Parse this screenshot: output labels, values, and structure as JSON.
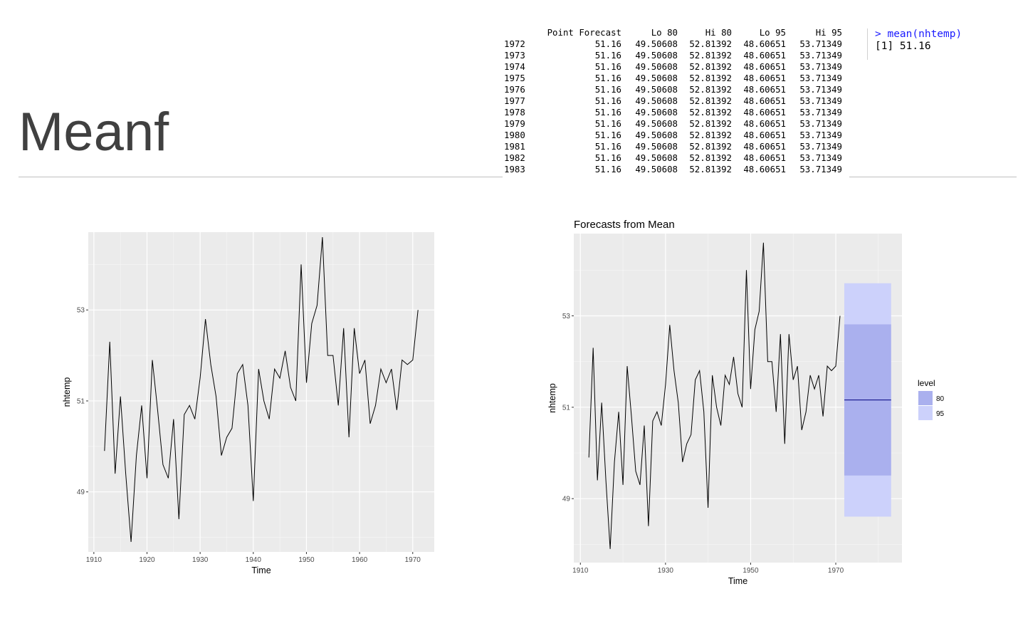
{
  "slide": {
    "title": "Meanf"
  },
  "console_table": {
    "header": [
      "Point Forecast",
      "Lo 80",
      "Hi 80",
      "Lo 95",
      "Hi 95"
    ],
    "rows": [
      [
        "1972",
        "51.16",
        "49.50608",
        "52.81392",
        "48.60651",
        "53.71349"
      ],
      [
        "1973",
        "51.16",
        "49.50608",
        "52.81392",
        "48.60651",
        "53.71349"
      ],
      [
        "1974",
        "51.16",
        "49.50608",
        "52.81392",
        "48.60651",
        "53.71349"
      ],
      [
        "1975",
        "51.16",
        "49.50608",
        "52.81392",
        "48.60651",
        "53.71349"
      ],
      [
        "1976",
        "51.16",
        "49.50608",
        "52.81392",
        "48.60651",
        "53.71349"
      ],
      [
        "1977",
        "51.16",
        "49.50608",
        "52.81392",
        "48.60651",
        "53.71349"
      ],
      [
        "1978",
        "51.16",
        "49.50608",
        "52.81392",
        "48.60651",
        "53.71349"
      ],
      [
        "1979",
        "51.16",
        "49.50608",
        "52.81392",
        "48.60651",
        "53.71349"
      ],
      [
        "1980",
        "51.16",
        "49.50608",
        "52.81392",
        "48.60651",
        "53.71349"
      ],
      [
        "1981",
        "51.16",
        "49.50608",
        "52.81392",
        "48.60651",
        "53.71349"
      ],
      [
        "1982",
        "51.16",
        "49.50608",
        "52.81392",
        "48.60651",
        "53.71349"
      ],
      [
        "1983",
        "51.16",
        "49.50608",
        "52.81392",
        "48.60651",
        "53.71349"
      ]
    ]
  },
  "console_cmd": {
    "command": "> mean(nhtemp)",
    "output": "[1] 51.16"
  },
  "colors": {
    "panel": "#ebebeb",
    "band80": "#aab0ee",
    "band95": "#ccd1fb",
    "line": "#000000",
    "mean": "#00007f"
  },
  "chart_data": [
    {
      "type": "line",
      "title": "",
      "xlabel": "Time",
      "ylabel": "nhtemp",
      "xlim": [
        1908.95,
        1974.05
      ],
      "ylim": [
        47.68,
        54.71
      ],
      "xticks": [
        1910,
        1920,
        1930,
        1940,
        1950,
        1960,
        1970
      ],
      "yticks": [
        49,
        51,
        53
      ],
      "grid": true,
      "x": [
        1912,
        1913,
        1914,
        1915,
        1916,
        1917,
        1918,
        1919,
        1920,
        1921,
        1922,
        1923,
        1924,
        1925,
        1926,
        1927,
        1928,
        1929,
        1930,
        1931,
        1932,
        1933,
        1934,
        1935,
        1936,
        1937,
        1938,
        1939,
        1940,
        1941,
        1942,
        1943,
        1944,
        1945,
        1946,
        1947,
        1948,
        1949,
        1950,
        1951,
        1952,
        1953,
        1954,
        1955,
        1956,
        1957,
        1958,
        1959,
        1960,
        1961,
        1962,
        1963,
        1964,
        1965,
        1966,
        1967,
        1968,
        1969,
        1970,
        1971
      ],
      "series": [
        {
          "values": [
            49.9,
            52.3,
            49.4,
            51.1,
            49.4,
            47.9,
            49.8,
            50.9,
            49.3,
            51.9,
            50.8,
            49.6,
            49.3,
            50.6,
            48.4,
            50.7,
            50.9,
            50.6,
            51.5,
            52.8,
            51.8,
            51.1,
            49.8,
            50.2,
            50.4,
            51.6,
            51.8,
            50.9,
            48.8,
            51.7,
            51.0,
            50.6,
            51.7,
            51.5,
            52.1,
            51.3,
            51.0,
            54.0,
            51.4,
            52.7,
            53.1,
            54.6,
            52.0,
            52.0,
            50.9,
            52.6,
            50.2,
            52.6,
            51.6,
            51.9,
            50.5,
            50.9,
            51.7,
            51.4,
            51.7,
            50.8,
            51.9,
            51.8,
            51.9,
            53.0
          ]
        }
      ]
    },
    {
      "type": "line",
      "title": "Forecasts from Mean",
      "xlabel": "Time",
      "ylabel": "nhtemp",
      "xlim": [
        1908.45,
        1985.55
      ],
      "ylim": [
        47.6,
        54.8
      ],
      "xticks": [
        1910,
        1930,
        1950,
        1970
      ],
      "yticks": [
        49,
        51,
        53
      ],
      "grid": true,
      "legend": {
        "title": "level",
        "position": "right",
        "entries": [
          "80",
          "95"
        ]
      },
      "forecast": {
        "start": 1972,
        "end": 1983,
        "mean": 51.16,
        "lo80": 49.50608,
        "hi80": 52.81392,
        "lo95": 48.60651,
        "hi95": 53.71349
      },
      "x": [
        1912,
        1913,
        1914,
        1915,
        1916,
        1917,
        1918,
        1919,
        1920,
        1921,
        1922,
        1923,
        1924,
        1925,
        1926,
        1927,
        1928,
        1929,
        1930,
        1931,
        1932,
        1933,
        1934,
        1935,
        1936,
        1937,
        1938,
        1939,
        1940,
        1941,
        1942,
        1943,
        1944,
        1945,
        1946,
        1947,
        1948,
        1949,
        1950,
        1951,
        1952,
        1953,
        1954,
        1955,
        1956,
        1957,
        1958,
        1959,
        1960,
        1961,
        1962,
        1963,
        1964,
        1965,
        1966,
        1967,
        1968,
        1969,
        1970,
        1971
      ],
      "series": [
        {
          "values": [
            49.9,
            52.3,
            49.4,
            51.1,
            49.4,
            47.9,
            49.8,
            50.9,
            49.3,
            51.9,
            50.8,
            49.6,
            49.3,
            50.6,
            48.4,
            50.7,
            50.9,
            50.6,
            51.5,
            52.8,
            51.8,
            51.1,
            49.8,
            50.2,
            50.4,
            51.6,
            51.8,
            50.9,
            48.8,
            51.7,
            51.0,
            50.6,
            51.7,
            51.5,
            52.1,
            51.3,
            51.0,
            54.0,
            51.4,
            52.7,
            53.1,
            54.6,
            52.0,
            52.0,
            50.9,
            52.6,
            50.2,
            52.6,
            51.6,
            51.9,
            50.5,
            50.9,
            51.7,
            51.4,
            51.7,
            50.8,
            51.9,
            51.8,
            51.9,
            53.0
          ]
        }
      ]
    }
  ]
}
